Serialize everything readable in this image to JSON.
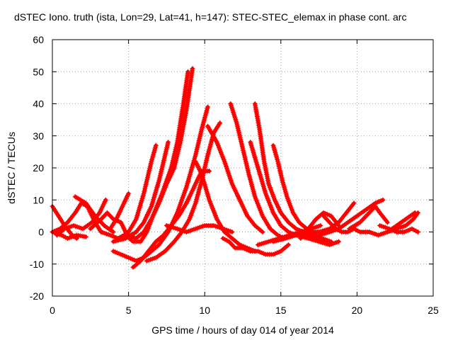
{
  "chart_data": {
    "type": "scatter",
    "title": "dSTEC Iono. truth (ista, Lon=29, Lat=41, h=147): STEC-STEC_elemax in phase cont. arc",
    "xlabel": "GPS time / hours of day 014 of year 2014",
    "ylabel": "dSTEC  / TECUs",
    "xlim": [
      0,
      25
    ],
    "ylim": [
      -20,
      60
    ],
    "x_ticks": [
      0,
      5,
      10,
      15,
      20,
      25
    ],
    "y_ticks": [
      -20,
      -10,
      0,
      10,
      20,
      30,
      40,
      50,
      60
    ],
    "grid": true,
    "marker": "+",
    "series_color": "#ff0000",
    "arcs": [
      {
        "x": [
          0.0,
          0.4,
          0.8,
          1.3,
          1.6
        ],
        "y": [
          8,
          5,
          2,
          -1,
          -2
        ]
      },
      {
        "x": [
          0.0,
          0.6,
          1.0,
          1.6,
          2.2
        ],
        "y": [
          0,
          -1,
          -2,
          -1,
          -1.5
        ]
      },
      {
        "x": [
          0.0,
          0.5,
          1.0,
          1.5,
          1.9,
          2.3,
          2.8,
          3.2
        ],
        "y": [
          0,
          1,
          3,
          6,
          9,
          8,
          3,
          0
        ]
      },
      {
        "x": [
          0.3,
          0.8,
          1.4,
          2.0,
          2.6,
          3.1,
          3.5
        ],
        "y": [
          -1,
          1,
          2,
          1,
          3,
          6,
          10
        ]
      },
      {
        "x": [
          1.5,
          2.2,
          2.8,
          3.4,
          4.0
        ],
        "y": [
          11,
          9,
          5,
          2,
          0
        ]
      },
      {
        "x": [
          2.5,
          3.2,
          3.6,
          4.0,
          4.5,
          4.8
        ],
        "y": [
          1,
          4,
          6,
          4,
          3,
          0
        ]
      },
      {
        "x": [
          3.2,
          3.8,
          4.3,
          4.7,
          5.0,
          5.5,
          6.0,
          6.5,
          6.8
        ],
        "y": [
          0,
          -1,
          -2,
          -1,
          0,
          4,
          12,
          22,
          27
        ]
      },
      {
        "x": [
          3.8,
          4.2,
          4.6,
          4.9,
          5.0
        ],
        "y": [
          1,
          4,
          8,
          11,
          12
        ]
      },
      {
        "x": [
          4.0,
          4.8,
          5.5,
          6.0,
          6.5,
          7.0,
          7.4,
          7.6
        ],
        "y": [
          -3,
          -2,
          0,
          3,
          8,
          16,
          24,
          28
        ]
      },
      {
        "x": [
          4.8,
          5.3,
          5.8,
          6.2,
          6.6,
          7.2,
          7.8,
          8.2,
          8.6,
          8.9
        ],
        "y": [
          -1,
          -3,
          -3,
          0,
          5,
          12,
          20,
          28,
          40,
          50
        ]
      },
      {
        "x": [
          5.0,
          5.5,
          6.0,
          6.5,
          7.0,
          7.5,
          8.0,
          8.4,
          8.8,
          9.2
        ],
        "y": [
          -1,
          -2,
          0,
          4,
          9,
          15,
          20,
          28,
          38,
          51
        ]
      },
      {
        "x": [
          4.0,
          4.5,
          5.0,
          5.5,
          6.0,
          6.5,
          7.0,
          7.6,
          8.2,
          8.8,
          9.4,
          9.8,
          10.2
        ],
        "y": [
          -6,
          -7,
          -8,
          -9,
          -8,
          -6,
          -4,
          0,
          6,
          14,
          24,
          32,
          39
        ]
      },
      {
        "x": [
          5.3,
          5.8,
          6.3,
          6.8,
          7.3,
          7.8,
          8.3,
          8.8,
          9.3,
          9.8,
          10.3
        ],
        "y": [
          -11,
          -9,
          -6,
          -3,
          -1,
          2,
          5,
          9,
          14,
          19,
          19
        ]
      },
      {
        "x": [
          6.2,
          6.8,
          7.4,
          8.0,
          8.5,
          9.0,
          9.4,
          9.8,
          10.2,
          10.6,
          11.0
        ],
        "y": [
          -9,
          -8,
          -6,
          -3,
          0,
          4,
          9,
          16,
          24,
          31,
          34
        ]
      },
      {
        "x": [
          9.4,
          9.8,
          10.3,
          10.8,
          11.3,
          11.8,
          12.3,
          12.8,
          13.3
        ],
        "y": [
          22,
          18,
          10,
          4,
          0,
          -2,
          -4,
          -5,
          -6
        ]
      },
      {
        "x": [
          10.2,
          10.8,
          11.3,
          11.8,
          12.3,
          12.8,
          13.3,
          13.8
        ],
        "y": [
          33,
          28,
          22,
          15,
          10,
          5,
          2,
          0
        ]
      },
      {
        "x": [
          7.5,
          8.2,
          8.8,
          9.4,
          10.0,
          10.6,
          11.2,
          11.8
        ],
        "y": [
          2,
          1,
          0,
          1,
          2,
          2,
          1,
          0
        ]
      },
      {
        "x": [
          11.7,
          12.1,
          12.5,
          12.9,
          13.3,
          13.8,
          14.3,
          14.8,
          15.2
        ],
        "y": [
          40,
          34,
          26,
          18,
          11,
          5,
          1,
          -1,
          -2
        ]
      },
      {
        "x": [
          11.2,
          11.6,
          12.0,
          12.5,
          13.0,
          13.5,
          14.0,
          14.5,
          15.0,
          15.5
        ],
        "y": [
          -2,
          -3,
          -5,
          -5,
          -6,
          -6,
          -7,
          -7,
          -6,
          -4
        ]
      },
      {
        "x": [
          13.0,
          13.5,
          14.0,
          14.5,
          15.0,
          15.5,
          16.0,
          16.5,
          17.0,
          17.5,
          18.0
        ],
        "y": [
          28,
          20,
          12,
          6,
          2,
          0,
          -1,
          -1,
          -2,
          -2,
          -3
        ]
      },
      {
        "x": [
          13.3,
          13.6,
          13.9,
          14.2,
          14.6,
          15.0,
          15.5,
          16.0,
          16.5,
          17.0
        ],
        "y": [
          40,
          32,
          22,
          15,
          10,
          6,
          3,
          1,
          0,
          -1
        ]
      },
      {
        "x": [
          14.5,
          14.8,
          15.1,
          15.4,
          15.8,
          16.2,
          16.7,
          17.2,
          17.7,
          18.3
        ],
        "y": [
          27,
          22,
          16,
          11,
          6,
          3,
          1,
          -1,
          -2,
          -3
        ]
      },
      {
        "x": [
          13.5,
          14.2,
          14.9,
          15.6,
          16.3,
          17.0,
          17.6
        ],
        "y": [
          -4,
          -3,
          -2,
          -1,
          0,
          1,
          2
        ]
      },
      {
        "x": [
          14.5,
          15.3,
          16.0,
          16.8,
          17.5,
          18.2,
          18.8
        ],
        "y": [
          -3,
          -2,
          -1,
          -2,
          -3,
          -4,
          -3
        ]
      },
      {
        "x": [
          16.3,
          16.8,
          17.3,
          17.8,
          18.3,
          18.8
        ],
        "y": [
          -2,
          1,
          4,
          6,
          5,
          2
        ]
      },
      {
        "x": [
          17.8,
          18.2,
          18.6,
          19.0,
          19.4,
          19.8,
          20.2,
          20.8
        ],
        "y": [
          5,
          3,
          1,
          0,
          0,
          1,
          0,
          0
        ]
      },
      {
        "x": [
          16.8,
          17.5,
          18.2,
          18.8,
          19.3,
          19.8
        ],
        "y": [
          0,
          0,
          1,
          3,
          6,
          9
        ]
      },
      {
        "x": [
          17.5,
          18.2,
          18.8,
          19.4,
          20.0,
          20.6,
          21.2,
          21.7
        ],
        "y": [
          -1,
          0,
          1,
          3,
          5,
          7,
          9,
          10
        ]
      },
      {
        "x": [
          19.5,
          20.2,
          20.8,
          21.2,
          21.5,
          22.0
        ],
        "y": [
          1,
          3,
          6,
          8,
          6,
          3
        ]
      },
      {
        "x": [
          20.8,
          21.4,
          22.0,
          22.6,
          23.2,
          23.8
        ],
        "y": [
          0,
          -1,
          0,
          2,
          4,
          6
        ]
      },
      {
        "x": [
          21.5,
          22.1,
          22.6,
          23.1,
          23.6,
          24.0
        ],
        "y": [
          2,
          1,
          0,
          0,
          1,
          0
        ]
      },
      {
        "x": [
          22.0,
          22.6,
          23.2,
          23.7,
          24.0
        ],
        "y": [
          0,
          1,
          2,
          4,
          6
        ]
      }
    ]
  }
}
